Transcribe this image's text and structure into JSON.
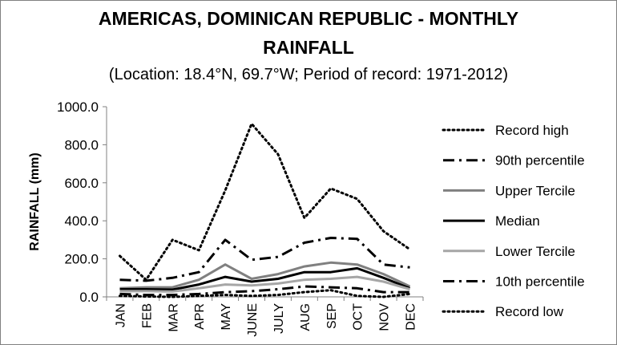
{
  "chart_data": {
    "type": "line",
    "title": "AMERICAS, DOMINICAN REPUBLIC - MONTHLY RAINFALL",
    "title_lines": [
      "AMERICAS, DOMINICAN REPUBLIC - MONTHLY",
      "RAINFALL"
    ],
    "subtitle": "(Location: 18.4°N, 69.7°W; Period of record: 1971-2012)",
    "xlabel": "",
    "ylabel": "RAINFALL (mm)",
    "ylim": [
      0,
      1000
    ],
    "yticks": [
      "0.0",
      "200.0",
      "400.0",
      "600.0",
      "800.0",
      "1000.0"
    ],
    "grid": false,
    "legend_position": "right",
    "categories": [
      "JAN",
      "FEB",
      "MAR",
      "APR",
      "MAY",
      "JUNE",
      "JULY",
      "AUG",
      "SEP",
      "OCT",
      "NOV",
      "DEC"
    ],
    "series": [
      {
        "name": "Record high",
        "color": "#000000",
        "style": "dotted",
        "values": [
          215,
          90,
          300,
          245,
          560,
          910,
          750,
          415,
          570,
          515,
          345,
          250
        ]
      },
      {
        "name": "90th percentile",
        "color": "#000000",
        "style": "dashdot",
        "values": [
          90,
          85,
          100,
          130,
          300,
          195,
          210,
          285,
          310,
          305,
          170,
          155
        ]
      },
      {
        "name": "Upper Tercile",
        "color": "#808080",
        "style": "solid",
        "values": [
          45,
          50,
          50,
          90,
          170,
          95,
          120,
          160,
          180,
          170,
          120,
          55
        ]
      },
      {
        "name": "Median",
        "color": "#000000",
        "style": "solid",
        "values": [
          40,
          40,
          38,
          65,
          105,
          80,
          95,
          130,
          130,
          150,
          100,
          45
        ]
      },
      {
        "name": "Lower Tercile",
        "color": "#a6a6a6",
        "style": "solid",
        "values": [
          30,
          30,
          28,
          45,
          65,
          60,
          70,
          90,
          95,
          105,
          80,
          40
        ]
      },
      {
        "name": "10th percentile",
        "color": "#000000",
        "style": "dashdot",
        "values": [
          15,
          10,
          10,
          15,
          25,
          30,
          40,
          55,
          50,
          45,
          25,
          25
        ]
      },
      {
        "name": "Record low",
        "color": "#000000",
        "style": "dotted",
        "values": [
          5,
          2,
          0,
          5,
          10,
          5,
          10,
          25,
          35,
          5,
          0,
          15
        ]
      }
    ]
  }
}
